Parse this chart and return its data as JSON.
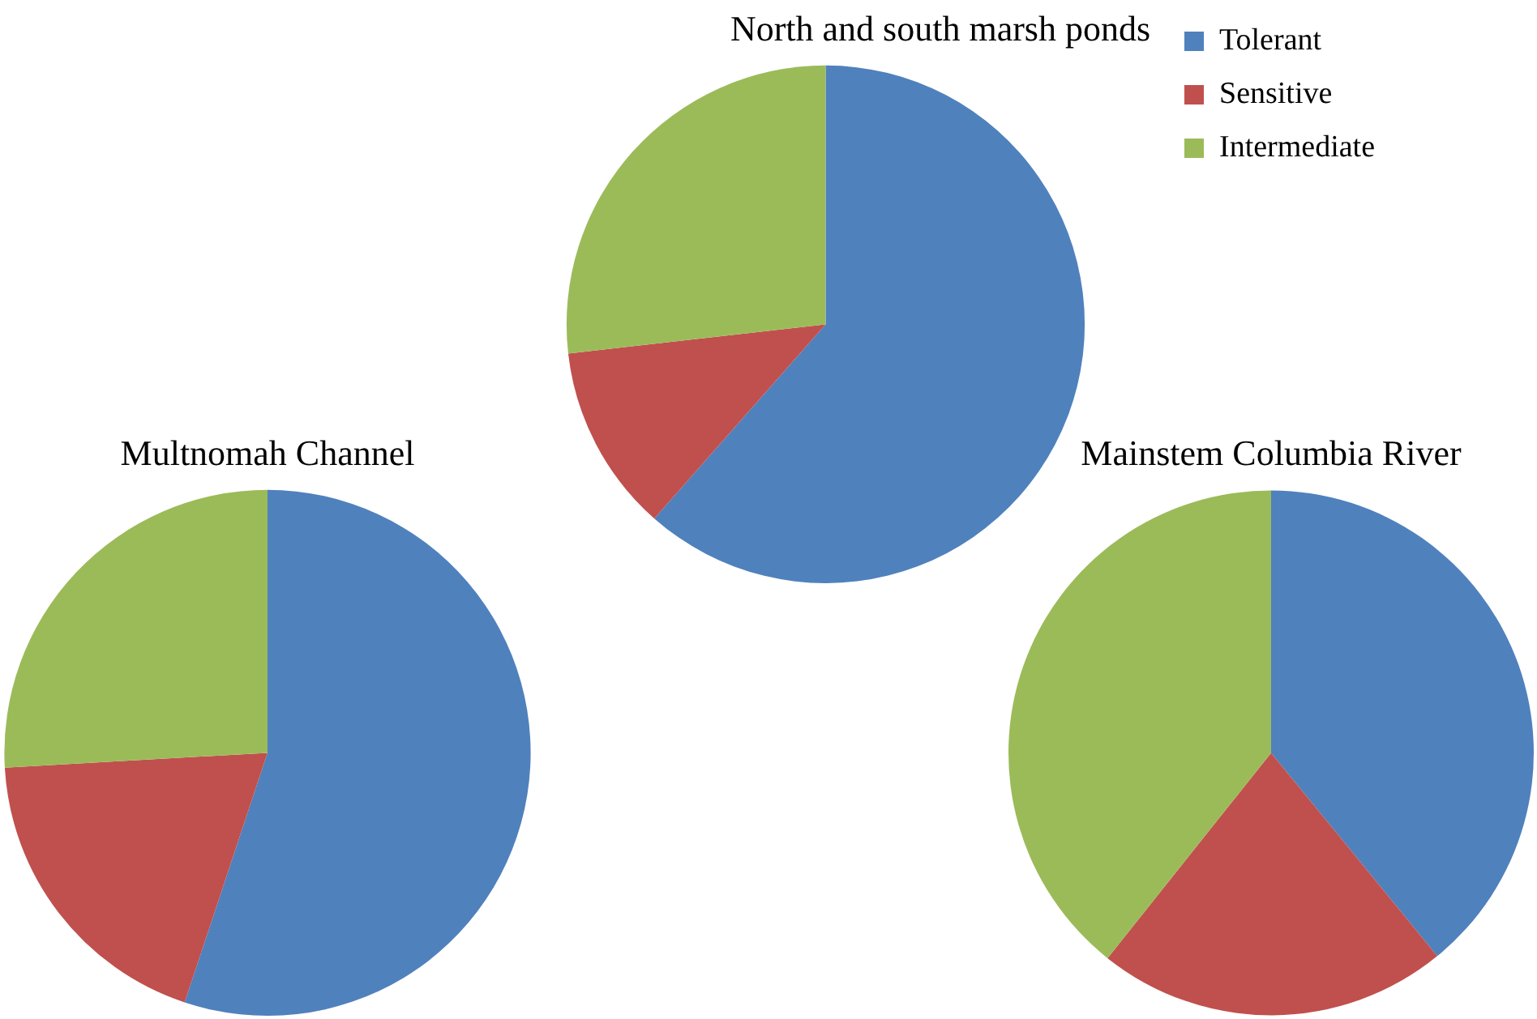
{
  "chart_data": [
    {
      "type": "pie",
      "title": "North and south marsh ponds",
      "categories": [
        "Tolerant",
        "Sensitive",
        "Intermediate"
      ],
      "values": [
        61.5,
        11.7,
        26.8
      ],
      "colors": [
        "#4f81bd",
        "#c0504d",
        "#9bbb59"
      ],
      "legend": "right"
    },
    {
      "type": "pie",
      "title": "Multnomah Channel",
      "categories": [
        null,
        null,
        null
      ],
      "values": [
        55.1,
        19.0,
        25.9
      ],
      "colors": [
        "#4f81bd",
        "#c0504d",
        "#9bbb59"
      ]
    },
    {
      "type": "pie",
      "title": "Mainstem Columbia River",
      "categories": [
        null,
        null,
        null
      ],
      "values": [
        39.1,
        21.6,
        39.3
      ],
      "colors": [
        "#4f81bd",
        "#c0504d",
        "#9bbb59"
      ]
    }
  ]
}
